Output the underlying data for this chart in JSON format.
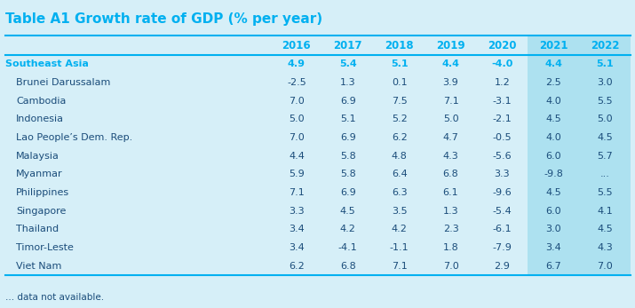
{
  "title": "Table A1 Growth rate of GDP (% per year)",
  "title_color": "#00B0F0",
  "background_color": "#D6EFF8",
  "col2021_2022_bg": "#ADE1F0",
  "years": [
    "2016",
    "2017",
    "2018",
    "2019",
    "2020",
    "2021",
    "2022"
  ],
  "rows": [
    {
      "country": "Southeast Asia",
      "bold": true,
      "indent": false,
      "color": "#00B0F0",
      "values": [
        "4.9",
        "5.4",
        "5.1",
        "4.4",
        "-4.0",
        "4.4",
        "5.1"
      ]
    },
    {
      "country": "Brunei Darussalam",
      "bold": false,
      "indent": true,
      "color": "#1A4C7A",
      "values": [
        "-2.5",
        "1.3",
        "0.1",
        "3.9",
        "1.2",
        "2.5",
        "3.0"
      ]
    },
    {
      "country": "Cambodia",
      "bold": false,
      "indent": true,
      "color": "#1A4C7A",
      "values": [
        "7.0",
        "6.9",
        "7.5",
        "7.1",
        "-3.1",
        "4.0",
        "5.5"
      ]
    },
    {
      "country": "Indonesia",
      "bold": false,
      "indent": true,
      "color": "#1A4C7A",
      "values": [
        "5.0",
        "5.1",
        "5.2",
        "5.0",
        "-2.1",
        "4.5",
        "5.0"
      ]
    },
    {
      "country": "Lao People’s Dem. Rep.",
      "bold": false,
      "indent": true,
      "color": "#1A4C7A",
      "values": [
        "7.0",
        "6.9",
        "6.2",
        "4.7",
        "-0.5",
        "4.0",
        "4.5"
      ]
    },
    {
      "country": "Malaysia",
      "bold": false,
      "indent": true,
      "color": "#1A4C7A",
      "values": [
        "4.4",
        "5.8",
        "4.8",
        "4.3",
        "-5.6",
        "6.0",
        "5.7"
      ]
    },
    {
      "country": "Myanmar",
      "bold": false,
      "indent": true,
      "color": "#1A4C7A",
      "values": [
        "5.9",
        "5.8",
        "6.4",
        "6.8",
        "3.3",
        "-9.8",
        "..."
      ]
    },
    {
      "country": "Philippines",
      "bold": false,
      "indent": true,
      "color": "#1A4C7A",
      "values": [
        "7.1",
        "6.9",
        "6.3",
        "6.1",
        "-9.6",
        "4.5",
        "5.5"
      ]
    },
    {
      "country": "Singapore",
      "bold": false,
      "indent": true,
      "color": "#1A4C7A",
      "values": [
        "3.3",
        "4.5",
        "3.5",
        "1.3",
        "-5.4",
        "6.0",
        "4.1"
      ]
    },
    {
      "country": "Thailand",
      "bold": false,
      "indent": true,
      "color": "#1A4C7A",
      "values": [
        "3.4",
        "4.2",
        "4.2",
        "2.3",
        "-6.1",
        "3.0",
        "4.5"
      ]
    },
    {
      "country": "Timor-Leste",
      "bold": false,
      "indent": true,
      "color": "#1A4C7A",
      "values": [
        "3.4",
        "-4.1",
        "-1.1",
        "1.8",
        "-7.9",
        "3.4",
        "4.3"
      ]
    },
    {
      "country": "Viet Nam",
      "bold": false,
      "indent": true,
      "color": "#1A4C7A",
      "values": [
        "6.2",
        "6.8",
        "7.1",
        "7.0",
        "2.9",
        "6.7",
        "7.0"
      ]
    }
  ],
  "footer": "... data not available.",
  "footer_color": "#1A4C7A",
  "year_color": "#00B0F0",
  "line_color": "#00B0F0",
  "title_fontsize": 11,
  "header_fontsize": 8.5,
  "data_fontsize": 8,
  "footer_fontsize": 7.5
}
